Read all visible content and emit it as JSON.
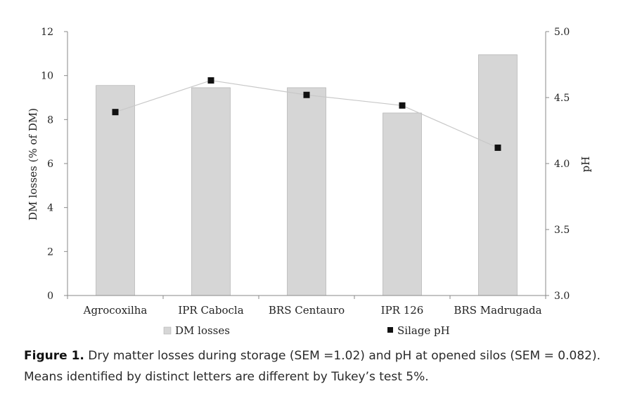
{
  "chart_data": {
    "type": "bar",
    "categories": [
      "Agrocoxilha",
      "IPR Cabocla",
      "BRS Centauro",
      "IPR 126",
      "BRS Madrugada"
    ],
    "series": [
      {
        "name": "DM losses",
        "kind": "bar",
        "axis": "left",
        "values": [
          9.55,
          9.45,
          9.45,
          8.3,
          10.95
        ]
      },
      {
        "name": "Silage pH",
        "kind": "line",
        "axis": "right",
        "values": [
          4.39,
          4.63,
          4.52,
          4.44,
          4.12
        ]
      }
    ],
    "ylabel": "DM losses (% of DM)",
    "ylabel_right": "pH",
    "ylim": [
      0,
      12
    ],
    "ylim_right": [
      3.0,
      5.0
    ],
    "yticks": [
      "0",
      "2",
      "4",
      "6",
      "8",
      "10",
      "12"
    ],
    "yticks_right": [
      "3.0",
      "3.5",
      "4.0",
      "4.5",
      "5.0"
    ],
    "legend": [
      "DM losses",
      "Silage pH"
    ],
    "legend_position": "bottom",
    "colors": {
      "bar": "#d6d6d6",
      "bar_edge": "#a8a8a8",
      "line": "#c8c8c8",
      "marker": "#111111",
      "axis": "#8a8a8a"
    }
  },
  "caption": {
    "label": "Figure 1.",
    "text": "Dry matter losses during storage (SEM =1.02) and pH at opened silos (SEM = 0.082). Means identified by distinct letters are different by Tukey’s test 5%."
  }
}
